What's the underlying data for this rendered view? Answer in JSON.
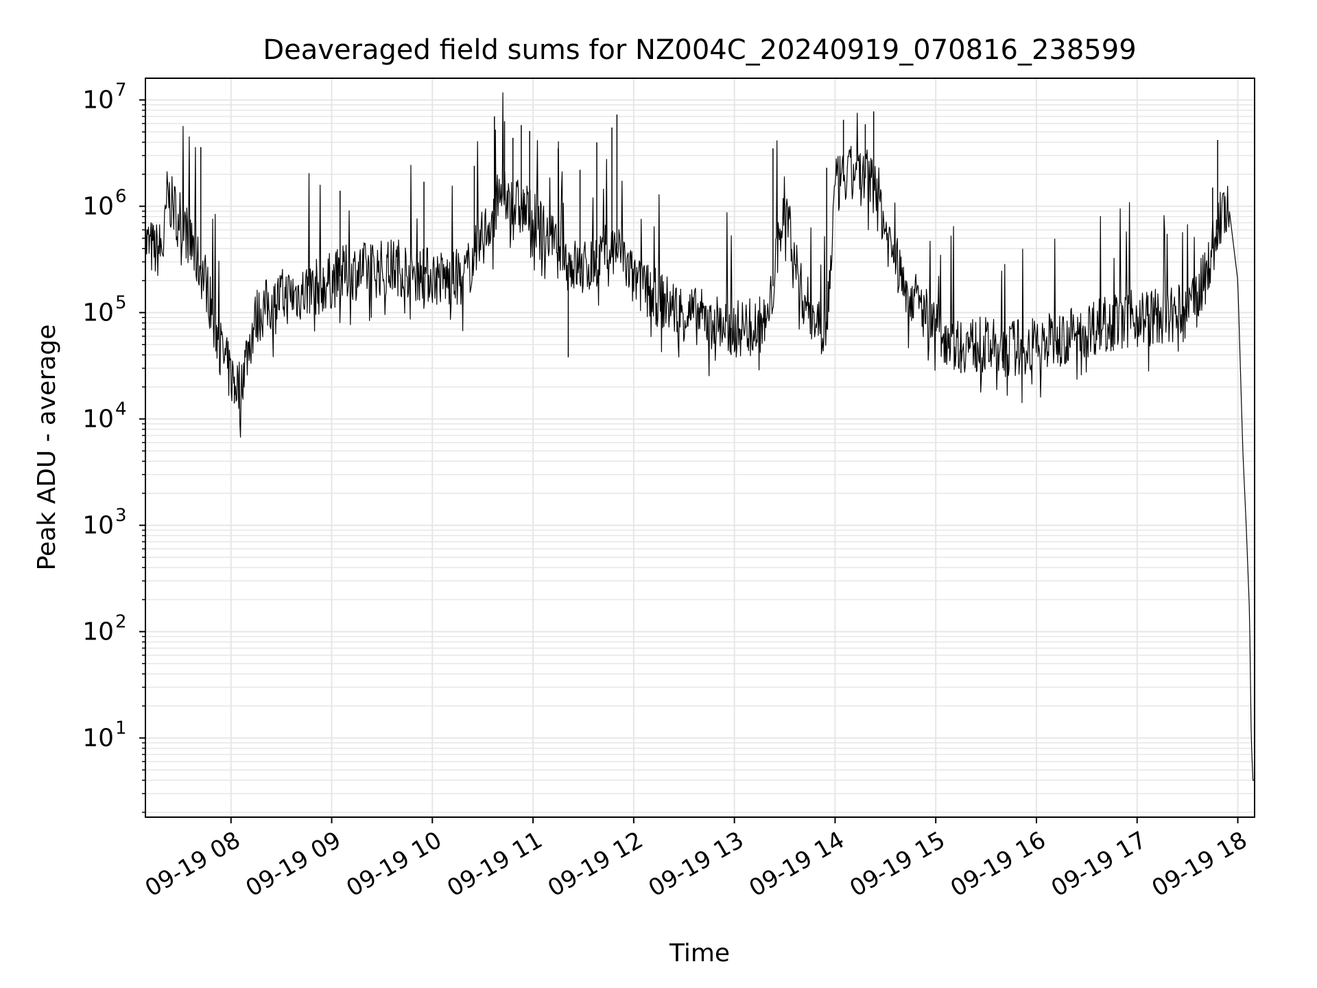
{
  "chart_data": {
    "type": "line",
    "title": "Deaveraged field sums for NZ004C_20240919_070816_238599",
    "xlabel": "Time",
    "ylabel": "Peak ADU - average",
    "yscale": "log",
    "ylim": [
      1.8,
      16000000
    ],
    "xlim": [
      "09-19 07:09",
      "09-19 18:10"
    ],
    "grid": true,
    "grid_minor": true,
    "line_color": "#000000",
    "grid_color": "#e6e6e6",
    "x_ticks": [
      {
        "time": "09-19 08:00",
        "label": "09-19 08"
      },
      {
        "time": "09-19 09:00",
        "label": "09-19 09"
      },
      {
        "time": "09-19 10:00",
        "label": "09-19 10"
      },
      {
        "time": "09-19 11:00",
        "label": "09-19 11"
      },
      {
        "time": "09-19 12:00",
        "label": "09-19 12"
      },
      {
        "time": "09-19 13:00",
        "label": "09-19 13"
      },
      {
        "time": "09-19 14:00",
        "label": "09-19 14"
      },
      {
        "time": "09-19 15:00",
        "label": "09-19 15"
      },
      {
        "time": "09-19 16:00",
        "label": "09-19 16"
      },
      {
        "time": "09-19 17:00",
        "label": "09-19 17"
      },
      {
        "time": "09-19 18:00",
        "label": "09-19 18"
      }
    ],
    "y_ticks": [
      {
        "value": 10,
        "base": "10",
        "exp": "1"
      },
      {
        "value": 100,
        "base": "10",
        "exp": "2"
      },
      {
        "value": 1000,
        "base": "10",
        "exp": "3"
      },
      {
        "value": 10000,
        "base": "10",
        "exp": "4"
      },
      {
        "value": 100000,
        "base": "10",
        "exp": "5"
      },
      {
        "value": 1000000,
        "base": "10",
        "exp": "6"
      },
      {
        "value": 10000000,
        "base": "10",
        "exp": "7"
      }
    ],
    "series": [
      {
        "x": [
          "09-19 07:09",
          "09-19 07:15",
          "09-19 07:20",
          "09-19 07:22",
          "09-19 07:25",
          "09-19 07:30",
          "09-19 07:35",
          "09-19 07:40",
          "09-19 07:45",
          "09-19 07:50",
          "09-19 07:55",
          "09-19 08:00",
          "09-19 08:05",
          "09-19 08:10",
          "09-19 08:15",
          "09-19 08:20",
          "09-19 08:30",
          "09-19 08:40",
          "09-19 08:50",
          "09-19 09:00",
          "09-19 09:10",
          "09-19 09:20",
          "09-19 09:30",
          "09-19 09:40",
          "09-19 09:50",
          "09-19 10:00",
          "09-19 10:10",
          "09-19 10:20",
          "09-19 10:30",
          "09-19 10:40",
          "09-19 10:50",
          "09-19 11:00",
          "09-19 11:10",
          "09-19 11:20",
          "09-19 11:30",
          "09-19 11:40",
          "09-19 11:50",
          "09-19 12:00",
          "09-19 12:10",
          "09-19 12:20",
          "09-19 12:30",
          "09-19 12:40",
          "09-19 12:50",
          "09-19 13:00",
          "09-19 13:10",
          "09-19 13:20",
          "09-19 13:25",
          "09-19 13:30",
          "09-19 13:40",
          "09-19 13:50",
          "09-19 13:55",
          "09-19 14:00",
          "09-19 14:10",
          "09-19 14:20",
          "09-19 14:25",
          "09-19 14:30",
          "09-19 14:40",
          "09-19 14:50",
          "09-19 15:00",
          "09-19 15:10",
          "09-19 15:20",
          "09-19 15:30",
          "09-19 15:40",
          "09-19 15:50",
          "09-19 16:00",
          "09-19 16:10",
          "09-19 16:20",
          "09-19 16:30",
          "09-19 16:40",
          "09-19 16:50",
          "09-19 17:00",
          "09-19 17:10",
          "09-19 17:20",
          "09-19 17:30",
          "09-19 17:40",
          "09-19 17:45",
          "09-19 17:50",
          "09-19 17:55",
          "09-19 18:00",
          "09-19 18:03",
          "09-19 18:05",
          "09-19 18:07",
          "09-19 18:08",
          "09-19 18:09",
          "09-19 18:10"
        ],
        "y": [
          450000,
          380000,
          420000,
          1300000,
          1000000,
          800000,
          500000,
          300000,
          200000,
          80000,
          40000,
          25000,
          20000,
          45000,
          90000,
          110000,
          140000,
          150000,
          170000,
          200000,
          240000,
          250000,
          260000,
          270000,
          240000,
          220000,
          200000,
          230000,
          500000,
          1200000,
          1000000,
          800000,
          500000,
          300000,
          250000,
          350000,
          400000,
          200000,
          150000,
          120000,
          100000,
          90000,
          80000,
          70000,
          75000,
          80000,
          300000,
          1200000,
          150000,
          80000,
          70000,
          1500000,
          2000000,
          1800000,
          1500000,
          600000,
          200000,
          120000,
          70000,
          55000,
          50000,
          48000,
          45000,
          48000,
          50000,
          55000,
          60000,
          70000,
          80000,
          85000,
          90000,
          90000,
          95000,
          100000,
          200000,
          400000,
          800000,
          900000,
          200000,
          5000,
          1000,
          150,
          10,
          4,
          4
        ],
        "peaks": [
          {
            "time": "09-19 07:42",
            "value": 3600000
          },
          {
            "time": "09-19 09:05",
            "value": 1400000
          },
          {
            "time": "09-19 09:55",
            "value": 1700000
          },
          {
            "time": "09-19 10:25",
            "value": 2400000
          },
          {
            "time": "09-19 10:37",
            "value": 7000000
          },
          {
            "time": "09-19 10:43",
            "value": 6300000
          },
          {
            "time": "09-19 10:48",
            "value": 4400000
          },
          {
            "time": "09-19 10:53",
            "value": 5800000
          },
          {
            "time": "09-19 10:58",
            "value": 5100000
          },
          {
            "time": "09-19 11:15",
            "value": 3500000
          },
          {
            "time": "09-19 11:28",
            "value": 2200000
          },
          {
            "time": "09-19 11:38",
            "value": 4000000
          },
          {
            "time": "09-19 11:47",
            "value": 5500000
          },
          {
            "time": "09-19 11:50",
            "value": 7300000
          },
          {
            "time": "09-19 13:23",
            "value": 3500000
          },
          {
            "time": "09-19 13:55",
            "value": 2300000
          },
          {
            "time": "09-19 14:05",
            "value": 6500000
          },
          {
            "time": "09-19 14:18",
            "value": 5900000
          },
          {
            "time": "09-19 14:23",
            "value": 7800000
          },
          {
            "time": "09-19 17:45",
            "value": 1500000
          },
          {
            "time": "09-19 17:48",
            "value": 4200000
          }
        ],
        "troughs": [
          {
            "time": "09-19 08:02",
            "value": 14000
          },
          {
            "time": "09-19 11:21",
            "value": 38000
          },
          {
            "time": "09-19 12:58",
            "value": 40000
          },
          {
            "time": "09-19 15:15",
            "value": 27000
          },
          {
            "time": "09-19 15:40",
            "value": 30000
          }
        ]
      }
    ]
  }
}
